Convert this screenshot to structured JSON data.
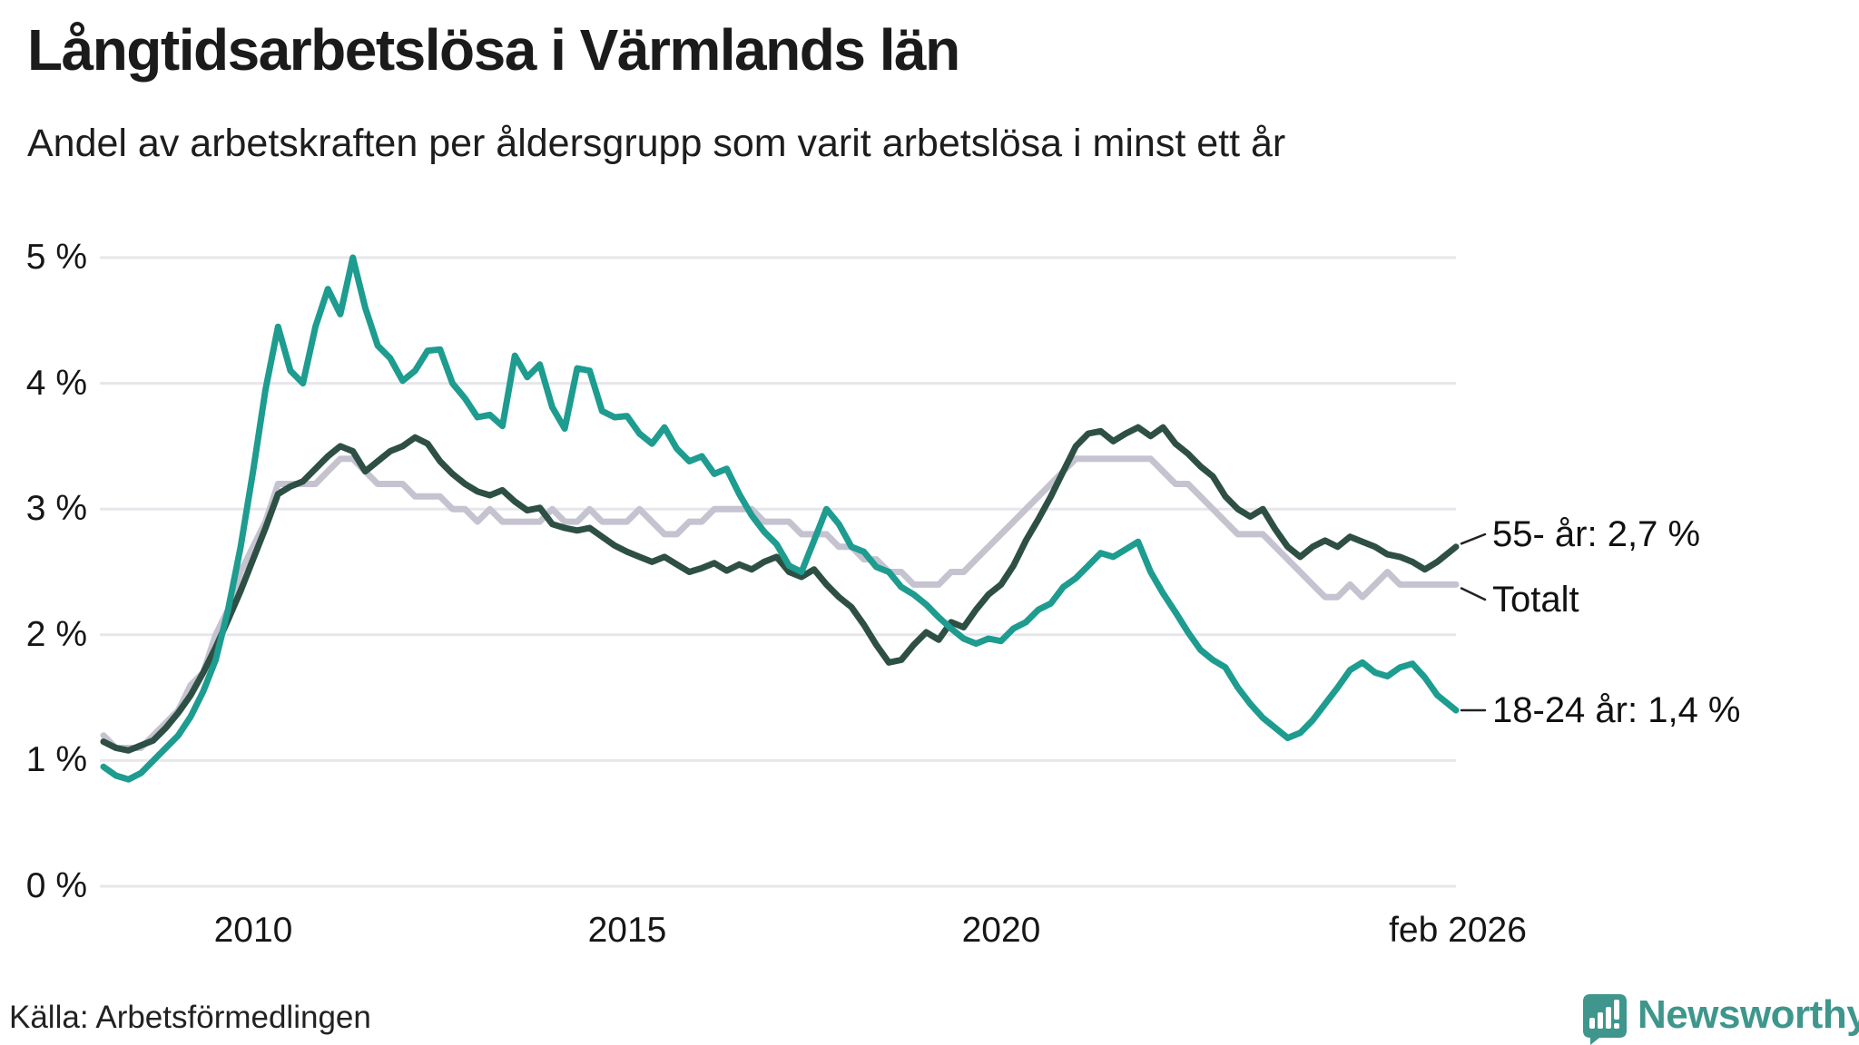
{
  "header": {
    "title": "Långtidsarbetslösa i Värmlands län",
    "subtitle": "Andel av arbetskraften per åldersgrupp som varit arbetslösa i minst ett år"
  },
  "chart_data": {
    "type": "line",
    "title": "Långtidsarbetslösa i Värmlands län",
    "subtitle": "Andel av arbetskraften per åldersgrupp som varit arbetslösa i minst ett år",
    "unit": "% av arbetskraften",
    "ylim": [
      0,
      5
    ],
    "grid": true,
    "x_start_year": 2008.0,
    "x_step_years": 0.1667,
    "x_end_year": 2026.083,
    "y_ticks": [
      {
        "value": 5,
        "label": "5 %"
      },
      {
        "value": 4,
        "label": "4 %"
      },
      {
        "value": 3,
        "label": "3 %"
      },
      {
        "value": 2,
        "label": "2 %"
      },
      {
        "value": 1,
        "label": "1 %"
      },
      {
        "value": 0,
        "label": "0 %"
      }
    ],
    "x_ticks": [
      {
        "value": 2010,
        "label": "2010"
      },
      {
        "value": 2015,
        "label": "2015"
      },
      {
        "value": 2020,
        "label": "2020"
      },
      {
        "value": 2026.083,
        "label": "feb 2026"
      }
    ],
    "colors": {
      "youth": "#1d9c8f",
      "senior": "#2e4f44",
      "total": "#c5c3d0",
      "gridline": "#e7e6ea",
      "text": "#161616",
      "brand": "#3e968c"
    },
    "series": [
      {
        "name": "Totalt",
        "end_label": "Totalt",
        "end_value": 2.4,
        "color": "#c5c3d0",
        "values": [
          1.2,
          1.1,
          1.1,
          1.1,
          1.2,
          1.3,
          1.4,
          1.6,
          1.7,
          2.0,
          2.2,
          2.5,
          2.7,
          2.9,
          3.2,
          3.2,
          3.2,
          3.2,
          3.3,
          3.4,
          3.4,
          3.3,
          3.2,
          3.2,
          3.2,
          3.1,
          3.1,
          3.1,
          3.0,
          3.0,
          2.9,
          3.0,
          2.9,
          2.9,
          2.9,
          2.9,
          3.0,
          2.9,
          2.9,
          3.0,
          2.9,
          2.9,
          2.9,
          3.0,
          2.9,
          2.8,
          2.8,
          2.9,
          2.9,
          3.0,
          3.0,
          3.0,
          3.0,
          2.9,
          2.9,
          2.9,
          2.8,
          2.8,
          2.8,
          2.7,
          2.7,
          2.6,
          2.6,
          2.5,
          2.5,
          2.4,
          2.4,
          2.4,
          2.5,
          2.5,
          2.6,
          2.7,
          2.8,
          2.9,
          3.0,
          3.1,
          3.2,
          3.3,
          3.4,
          3.4,
          3.4,
          3.4,
          3.4,
          3.4,
          3.4,
          3.3,
          3.2,
          3.2,
          3.1,
          3.0,
          2.9,
          2.8,
          2.8,
          2.8,
          2.7,
          2.6,
          2.5,
          2.4,
          2.3,
          2.3,
          2.4,
          2.3,
          2.4,
          2.5,
          2.4,
          2.4,
          2.4,
          2.4,
          2.4
        ]
      },
      {
        "name": "55- år",
        "end_label": "55- år: 2,7 %",
        "end_value": 2.7,
        "color": "#2e4f44",
        "values": [
          1.15,
          1.1,
          1.08,
          1.12,
          1.16,
          1.26,
          1.38,
          1.52,
          1.7,
          1.9,
          2.12,
          2.35,
          2.6,
          2.85,
          3.12,
          3.18,
          3.22,
          3.32,
          3.42,
          3.5,
          3.46,
          3.3,
          3.38,
          3.46,
          3.5,
          3.57,
          3.52,
          3.38,
          3.28,
          3.2,
          3.14,
          3.11,
          3.15,
          3.06,
          2.99,
          3.01,
          2.88,
          2.85,
          2.83,
          2.85,
          2.78,
          2.71,
          2.66,
          2.62,
          2.58,
          2.62,
          2.56,
          2.5,
          2.53,
          2.57,
          2.51,
          2.56,
          2.52,
          2.58,
          2.62,
          2.5,
          2.46,
          2.52,
          2.4,
          2.3,
          2.22,
          2.08,
          1.92,
          1.78,
          1.8,
          1.92,
          2.02,
          1.96,
          2.1,
          2.06,
          2.2,
          2.32,
          2.4,
          2.55,
          2.75,
          2.92,
          3.1,
          3.3,
          3.5,
          3.6,
          3.62,
          3.54,
          3.6,
          3.65,
          3.58,
          3.65,
          3.52,
          3.44,
          3.34,
          3.26,
          3.1,
          3.0,
          2.94,
          3.0,
          2.84,
          2.7,
          2.62,
          2.7,
          2.75,
          2.7,
          2.78,
          2.74,
          2.7,
          2.64,
          2.62,
          2.58,
          2.52,
          2.58,
          2.7
        ]
      },
      {
        "name": "18-24 år",
        "end_label": "18-24 år: 1,4 %",
        "end_value": 1.4,
        "color": "#1d9c8f",
        "values": [
          0.95,
          0.88,
          0.85,
          0.9,
          1.0,
          1.1,
          1.2,
          1.35,
          1.55,
          1.8,
          2.2,
          2.7,
          3.3,
          3.95,
          4.45,
          4.1,
          4.0,
          4.45,
          4.75,
          4.55,
          5.0,
          4.6,
          4.3,
          4.2,
          4.02,
          4.1,
          4.26,
          4.27,
          4.0,
          3.88,
          3.73,
          3.75,
          3.66,
          4.22,
          4.05,
          4.15,
          3.81,
          3.64,
          4.12,
          4.1,
          3.78,
          3.73,
          3.74,
          3.6,
          3.52,
          3.65,
          3.48,
          3.38,
          3.42,
          3.28,
          3.32,
          3.12,
          2.95,
          2.82,
          2.72,
          2.55,
          2.5,
          2.75,
          3.0,
          2.88,
          2.7,
          2.66,
          2.54,
          2.5,
          2.38,
          2.32,
          2.24,
          2.14,
          2.05,
          1.97,
          1.93,
          1.97,
          1.95,
          2.05,
          2.1,
          2.2,
          2.25,
          2.38,
          2.45,
          2.55,
          2.65,
          2.62,
          2.68,
          2.74,
          2.5,
          2.33,
          2.18,
          2.02,
          1.88,
          1.8,
          1.74,
          1.58,
          1.45,
          1.34,
          1.26,
          1.18,
          1.22,
          1.32,
          1.45,
          1.58,
          1.72,
          1.78,
          1.7,
          1.67,
          1.74,
          1.77,
          1.66,
          1.52,
          1.4
        ]
      }
    ],
    "legend_position": "right-end-labels"
  },
  "footer": {
    "source": "Källa: Arbetsförmedlingen",
    "brand": "Newsworthy"
  }
}
